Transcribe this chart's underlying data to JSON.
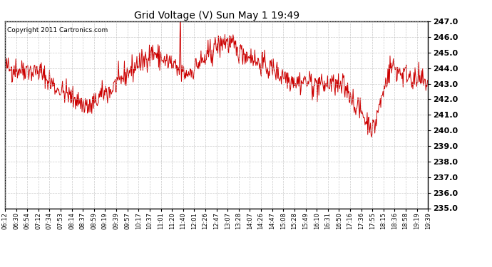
{
  "title": "Grid Voltage (V) Sun May 1 19:49",
  "copyright": "Copyright 2011 Cartronics.com",
  "line_color": "#cc0000",
  "bg_color": "#ffffff",
  "plot_bg_color": "#ffffff",
  "grid_color": "#bbbbbb",
  "ylim": [
    235.0,
    247.0
  ],
  "ytick_values": [
    235.0,
    236.0,
    237.0,
    238.0,
    239.0,
    240.0,
    241.0,
    242.0,
    243.0,
    244.0,
    245.0,
    246.0,
    247.0
  ],
  "xtick_labels": [
    "06:12",
    "06:30",
    "06:54",
    "07:12",
    "07:34",
    "07:53",
    "08:14",
    "08:37",
    "08:59",
    "09:19",
    "09:39",
    "09:57",
    "10:17",
    "10:37",
    "11:01",
    "11:20",
    "11:40",
    "12:01",
    "12:26",
    "12:47",
    "13:07",
    "13:28",
    "14:07",
    "14:26",
    "14:47",
    "15:08",
    "15:28",
    "15:49",
    "16:10",
    "16:31",
    "16:50",
    "17:16",
    "17:36",
    "17:55",
    "18:15",
    "18:36",
    "18:58",
    "19:19",
    "19:39"
  ],
  "seed": 42,
  "n_points": 780,
  "line_width": 0.7
}
